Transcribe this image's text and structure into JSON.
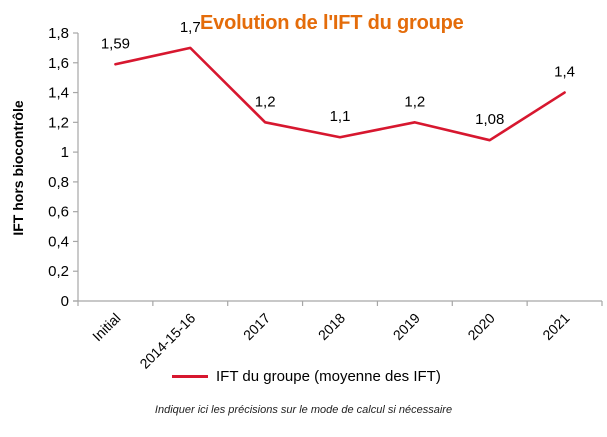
{
  "chart_data": {
    "type": "line",
    "title": "Evolution de l'IFT du groupe",
    "xlabel": "",
    "ylabel": "IFT  hors biocontrôle",
    "categories": [
      "Initial",
      "2014-15-16",
      "2017",
      "2018",
      "2019",
      "2020",
      "2021"
    ],
    "series": [
      {
        "name": "IFT du groupe (moyenne des IFT)",
        "values": [
          1.59,
          1.7,
          1.2,
          1.1,
          1.2,
          1.08,
          1.4
        ],
        "labels": [
          "1,59",
          "1,7",
          "1,2",
          "1,1",
          "1,2",
          "1,08",
          "1,4"
        ],
        "color": "#D7172F"
      }
    ],
    "ylim": [
      0,
      1.8
    ],
    "yticks": [
      0,
      0.2,
      0.4,
      0.6,
      0.8,
      1,
      1.2,
      1.4,
      1.6,
      1.8
    ],
    "ytick_labels": [
      "0",
      "0,2",
      "0,4",
      "0,6",
      "0,8",
      "1",
      "1,2",
      "1,4",
      "1,6",
      "1,8"
    ],
    "grid": false,
    "legend_position": "bottom",
    "title_color": "#E46C0A",
    "axis_color": "#A6A6A6"
  },
  "note": "Indiquer ici les précisions sur le mode de calcul si nécessaire"
}
